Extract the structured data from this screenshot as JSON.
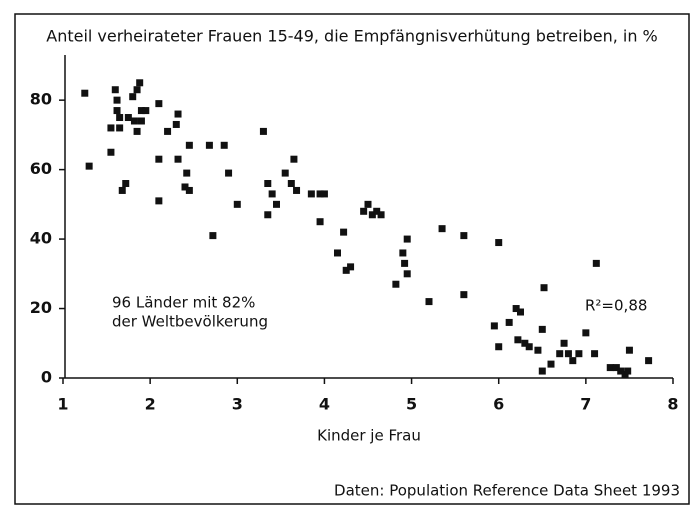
{
  "chart_data": {
    "type": "scatter",
    "title": "Anteil verheirateter Frauen 15-49, die Empfängnisverhütung betreiben, in %",
    "xlabel": "Kinder je Frau",
    "annotation": [
      "96 Länder mit 82%",
      "der Weltbevölkerung"
    ],
    "r2_label": "R²=0,88",
    "source": "Daten: Population Reference Data Sheet 1993",
    "color": "#111111",
    "xlim": [
      1,
      8
    ],
    "xticks": [
      1,
      2,
      3,
      4,
      5,
      6,
      7,
      8
    ],
    "ylim": [
      0,
      93
    ],
    "yticks": [
      0,
      20,
      40,
      60,
      80
    ],
    "x": [
      1.25,
      1.3,
      1.55,
      1.6,
      1.62,
      1.62,
      1.65,
      1.55,
      1.68,
      1.72,
      1.75,
      1.8,
      1.82,
      1.85,
      1.88,
      1.85,
      1.9,
      1.95,
      1.9,
      1.65,
      2.1,
      2.1,
      2.1,
      2.2,
      2.3,
      2.32,
      2.32,
      2.4,
      2.42,
      2.45,
      2.45,
      2.68,
      2.85,
      2.9,
      2.72,
      3.0,
      3.3,
      3.35,
      3.35,
      3.4,
      3.45,
      3.55,
      3.62,
      3.65,
      3.68,
      3.85,
      3.95,
      3.95,
      4.0,
      4.15,
      4.22,
      4.25,
      4.3,
      4.45,
      4.5,
      4.55,
      4.6,
      4.65,
      4.82,
      4.9,
      4.95,
      4.92,
      4.95,
      5.2,
      5.35,
      5.6,
      5.6,
      5.95,
      6.0,
      6.0,
      6.12,
      6.2,
      6.22,
      6.25,
      6.3,
      6.35,
      6.45,
      6.5,
      6.52,
      6.5,
      6.6,
      6.7,
      6.75,
      6.8,
      6.85,
      6.92,
      7.0,
      7.1,
      7.12,
      7.28,
      7.35,
      7.4,
      7.45,
      7.48,
      7.5,
      7.72
    ],
    "y": [
      82,
      61,
      72,
      83,
      80,
      77,
      72,
      65,
      54,
      56,
      75,
      81,
      74,
      83,
      85,
      71,
      77,
      77,
      74,
      75,
      79,
      63,
      51,
      71,
      73,
      76,
      63,
      55,
      59,
      54,
      67,
      67,
      67,
      59,
      41,
      50,
      71,
      56,
      47,
      53,
      50,
      59,
      56,
      63,
      54,
      53,
      45,
      53,
      53,
      36,
      42,
      31,
      32,
      48,
      50,
      47,
      48,
      47,
      27,
      36,
      40,
      33,
      30,
      22,
      43,
      41,
      24,
      15,
      9,
      39,
      16,
      20,
      11,
      19,
      10,
      9,
      8,
      14,
      26,
      2,
      4,
      7,
      10,
      7,
      5,
      7,
      13,
      7,
      33,
      3,
      3,
      2,
      1,
      2,
      8,
      5
    ]
  }
}
